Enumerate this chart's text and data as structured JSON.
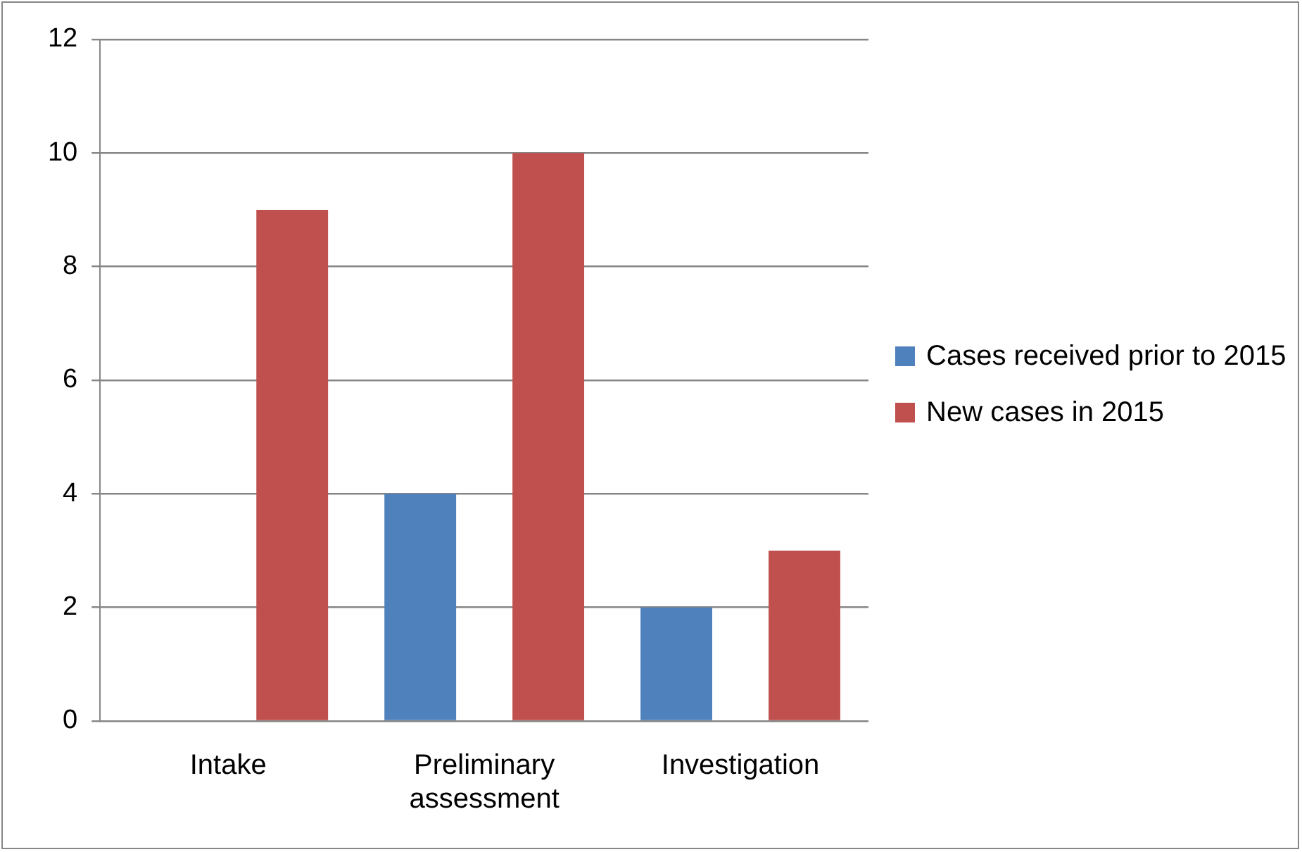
{
  "chart_data": {
    "type": "bar",
    "categories": [
      "Intake",
      "Preliminary assessment",
      "Investigation"
    ],
    "series": [
      {
        "name": "Cases received prior to 2015",
        "color": "#4f81bd",
        "values": [
          0,
          4,
          2
        ]
      },
      {
        "name": "New cases in 2015",
        "color": "#c0504d",
        "values": [
          9,
          10,
          3
        ]
      }
    ],
    "ylim": [
      0,
      12
    ],
    "yticks": [
      0,
      2,
      4,
      6,
      8,
      10,
      12
    ],
    "grid": "y",
    "legend": "right"
  }
}
